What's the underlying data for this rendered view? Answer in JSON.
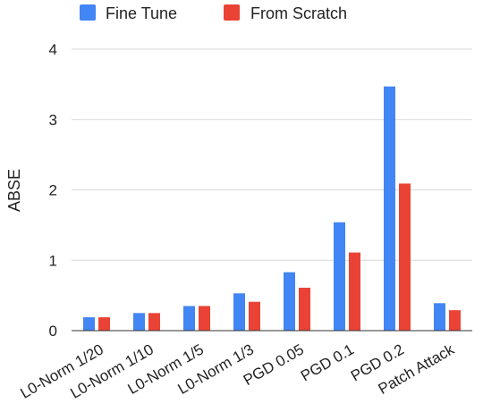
{
  "chart_data": {
    "type": "bar",
    "title": "",
    "xlabel": "",
    "ylabel": "ABSE",
    "ylim": [
      0,
      4
    ],
    "yticks": [
      "0",
      "1",
      "2",
      "3",
      "4"
    ],
    "grid": true,
    "legend_position": "top",
    "categories": [
      "L0-Norm 1/20",
      "L0-Norm 1/10",
      "L0-Norm 1/5",
      "L0-Norm 1/3",
      "PGD 0.05",
      "PGD 0.1",
      "PGD 0.2",
      "Patch Attack"
    ],
    "series": [
      {
        "name": "Fine Tune",
        "color": "#4285f4",
        "values": [
          0.19,
          0.25,
          0.35,
          0.53,
          0.83,
          1.54,
          3.47,
          0.39
        ]
      },
      {
        "name": "From Scratch",
        "color": "#ea4335",
        "values": [
          0.19,
          0.25,
          0.35,
          0.41,
          0.61,
          1.11,
          2.09,
          0.29
        ]
      }
    ]
  }
}
